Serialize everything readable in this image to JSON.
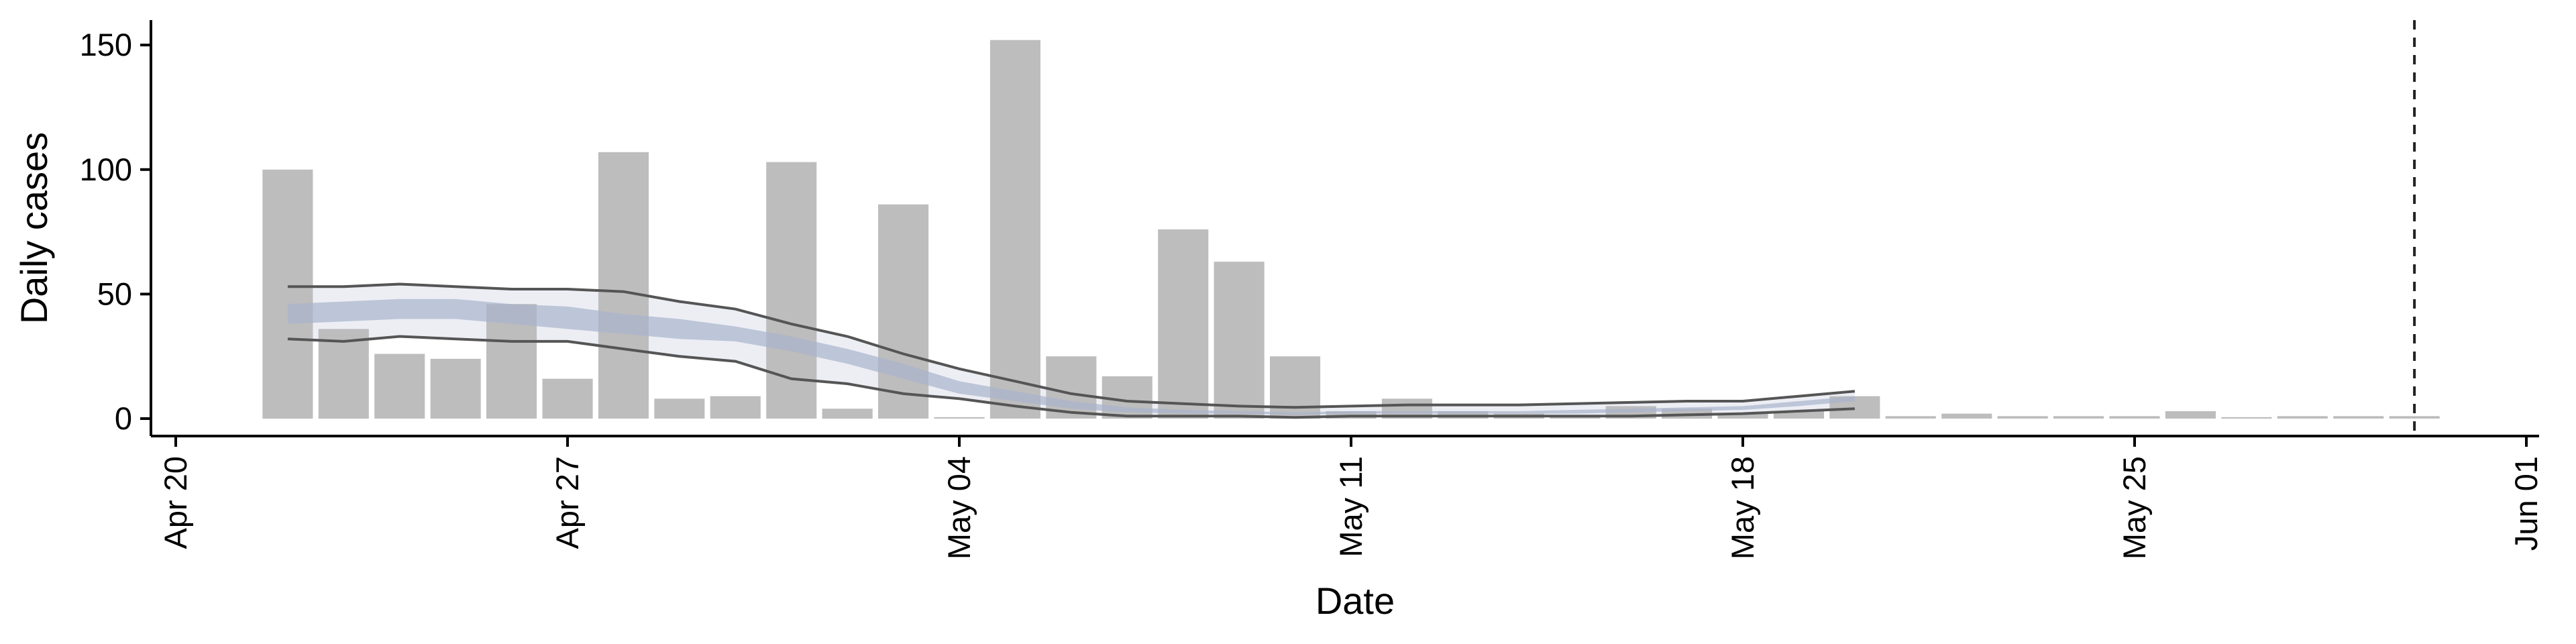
{
  "chart_data": {
    "type": "bar",
    "title": "",
    "xlabel": "Date",
    "ylabel": "Daily cases",
    "x_ticks": [
      "Apr 20",
      "Apr 27",
      "May 04",
      "May 11",
      "May 18",
      "May 25",
      "Jun 01"
    ],
    "y_ticks": [
      "0",
      "50",
      "100",
      "150"
    ],
    "ylim": [
      -7,
      160
    ],
    "xlim": [
      "2020-04-20",
      "2020-06-01"
    ],
    "grid": false,
    "legend": "none",
    "dates": [
      "2020-04-22",
      "2020-04-23",
      "2020-04-24",
      "2020-04-25",
      "2020-04-26",
      "2020-04-27",
      "2020-04-28",
      "2020-04-29",
      "2020-04-30",
      "2020-05-01",
      "2020-05-02",
      "2020-05-03",
      "2020-05-04",
      "2020-05-05",
      "2020-05-06",
      "2020-05-07",
      "2020-05-08",
      "2020-05-09",
      "2020-05-10",
      "2020-05-11",
      "2020-05-12",
      "2020-05-13",
      "2020-05-14",
      "2020-05-15",
      "2020-05-16",
      "2020-05-17",
      "2020-05-18",
      "2020-05-19",
      "2020-05-20",
      "2020-05-21",
      "2020-05-22",
      "2020-05-23",
      "2020-05-24",
      "2020-05-25",
      "2020-05-26",
      "2020-05-27",
      "2020-05-28",
      "2020-05-29",
      "2020-05-30"
    ],
    "values": [
      100,
      36,
      26,
      24,
      46,
      16,
      107,
      8,
      9,
      103,
      4,
      86,
      0,
      152,
      25,
      17,
      76,
      63,
      25,
      3,
      8,
      3,
      2,
      0,
      5,
      4,
      2,
      3,
      9,
      1,
      2,
      1,
      1,
      1,
      3,
      0,
      1,
      1,
      1
    ],
    "bar_color": "#bdbdbd",
    "estimate": {
      "dates": [
        "2020-04-22",
        "2020-04-23",
        "2020-04-24",
        "2020-04-25",
        "2020-04-26",
        "2020-04-27",
        "2020-04-28",
        "2020-04-29",
        "2020-04-30",
        "2020-05-01",
        "2020-05-02",
        "2020-05-03",
        "2020-05-04",
        "2020-05-05",
        "2020-05-06",
        "2020-05-07",
        "2020-05-08",
        "2020-05-09",
        "2020-05-10",
        "2020-05-11",
        "2020-05-12",
        "2020-05-13",
        "2020-05-14",
        "2020-05-15",
        "2020-05-16",
        "2020-05-17",
        "2020-05-18",
        "2020-05-19",
        "2020-05-20"
      ],
      "upper90": [
        53,
        53,
        54,
        53,
        52,
        52,
        51,
        47,
        44,
        38,
        33,
        26,
        20,
        15,
        10,
        7,
        6,
        5,
        4.5,
        5,
        5.5,
        5.5,
        5.5,
        6,
        6.5,
        7,
        7,
        9,
        11
      ],
      "upper50": [
        46,
        47,
        48,
        48,
        46,
        45,
        42,
        40,
        37,
        33,
        28,
        22,
        15,
        11,
        7,
        4.5,
        3.5,
        3,
        2.5,
        3,
        3,
        3,
        3,
        3.5,
        4,
        4.5,
        5,
        7,
        9
      ],
      "median": [
        42,
        43,
        44,
        44,
        42,
        40,
        38,
        36,
        34,
        30,
        25,
        19,
        13,
        9,
        5.5,
        3.5,
        3,
        2.5,
        2,
        2.5,
        2.5,
        2.5,
        2.5,
        3,
        3.5,
        4,
        4.5,
        6,
        8
      ],
      "lower50": [
        38,
        39,
        40,
        40,
        38,
        36,
        34,
        32,
        31,
        27,
        22,
        16,
        10,
        7,
        4,
        2.5,
        2,
        2,
        1.5,
        2,
        2,
        2,
        2,
        2,
        2.5,
        3,
        3.5,
        5,
        7
      ],
      "lower90": [
        32,
        31,
        33,
        32,
        31,
        31,
        28,
        25,
        23,
        16,
        14,
        10,
        8,
        5,
        2.5,
        1,
        1,
        1,
        0.5,
        1,
        1,
        1,
        1,
        1,
        1,
        1.5,
        2,
        3,
        4
      ],
      "band90_color": "#e6e8f0",
      "band50_color": "#aab4cc",
      "line_color": "#555555"
    },
    "vline_date": "2020-05-30"
  }
}
